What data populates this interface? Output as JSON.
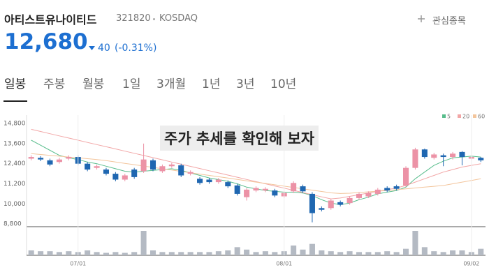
{
  "header": {
    "name": "아티스트유나이티드",
    "code": "321820",
    "market": "KOSDAQ",
    "watch": "관심종목",
    "price": "12,680",
    "change": "40",
    "change_pct": "(-0.31%)"
  },
  "tabs": [
    "일봉",
    "주봉",
    "월봉",
    "1일",
    "3개월",
    "1년",
    "3년",
    "10년"
  ],
  "overlay": "주가 추세를 확인해 보자",
  "chart_data": {
    "type": "candlestick",
    "categories": [
      null,
      null,
      null,
      null,
      null,
      "07/01",
      null,
      null,
      null,
      null,
      null,
      null,
      null,
      null,
      null,
      null,
      null,
      null,
      null,
      null,
      null,
      null,
      null,
      null,
      null,
      null,
      null,
      "08/01",
      null,
      null,
      null,
      null,
      null,
      null,
      null,
      null,
      null,
      null,
      null,
      null,
      null,
      null,
      null,
      null,
      null,
      null,
      null,
      "09/02",
      null
    ],
    "open": [
      12700,
      12750,
      12600,
      12500,
      12700,
      12800,
      12400,
      12150,
      12050,
      11800,
      11450,
      12050,
      11950,
      12600,
      11950,
      12250,
      12300,
      11800,
      11500,
      11450,
      11300,
      11300,
      11100,
      10400,
      10800,
      10800,
      10800,
      10450,
      10750,
      11050,
      10600,
      9750,
      9750,
      10100,
      10050,
      10350,
      10450,
      10600,
      10950,
      11050,
      11100,
      12150,
      13250,
      12750,
      12900,
      12800,
      13100,
      12700,
      12750
    ],
    "high": [
      12900,
      12850,
      12700,
      12750,
      12900,
      12900,
      12500,
      12350,
      12150,
      11900,
      11800,
      12150,
      13600,
      12700,
      12350,
      12450,
      12400,
      12000,
      11600,
      11550,
      11550,
      11400,
      11200,
      10950,
      11050,
      11000,
      10900,
      10750,
      11350,
      11150,
      10700,
      9850,
      10300,
      10200,
      10450,
      10700,
      10750,
      10950,
      11050,
      11150,
      12250,
      13350,
      13300,
      13050,
      13000,
      13100,
      13150,
      12900,
      12800
    ],
    "low": [
      12600,
      12550,
      12250,
      12400,
      12600,
      12300,
      11950,
      12050,
      11700,
      11350,
      11350,
      11500,
      11850,
      11950,
      11850,
      12150,
      11600,
      11700,
      11150,
      11200,
      11200,
      10950,
      10500,
      10200,
      10700,
      10700,
      10400,
      10350,
      10650,
      10650,
      8900,
      9550,
      9650,
      9850,
      9950,
      10250,
      10350,
      10500,
      10700,
      10800,
      11000,
      12050,
      12700,
      12650,
      12250,
      12650,
      12300,
      12600,
      12500
    ],
    "close": [
      12800,
      12650,
      12350,
      12650,
      12800,
      12400,
      12050,
      12250,
      11800,
      11450,
      11700,
      11600,
      12650,
      12050,
      12250,
      12350,
      11700,
      11900,
      11250,
      11300,
      11450,
      11050,
      10600,
      10850,
      10950,
      10900,
      10500,
      10650,
      11250,
      10750,
      9450,
      9650,
      10200,
      9950,
      10350,
      10600,
      10650,
      10850,
      10800,
      10900,
      12150,
      13250,
      12800,
      12950,
      12800,
      13000,
      12800,
      12800,
      12600
    ],
    "volume": [
      6,
      5,
      5,
      4,
      5,
      4,
      6,
      4,
      3,
      4,
      3,
      4,
      30,
      6,
      4,
      4,
      4,
      4,
      4,
      4,
      5,
      6,
      10,
      7,
      4,
      5,
      4,
      5,
      12,
      7,
      14,
      6,
      5,
      4,
      5,
      4,
      4,
      4,
      5,
      4,
      8,
      30,
      10,
      5,
      4,
      6,
      6,
      4,
      8
    ],
    "up_color": "#ec92a6",
    "down_color": "#1f67b1",
    "volume_color": "#b4bac3",
    "series": [
      {
        "name": "5",
        "color": "#58bd8c",
        "values": [
          13800,
          13500,
          13200,
          12900,
          12750,
          12650,
          12500,
          12400,
          12250,
          12100,
          11950,
          11900,
          11950,
          12000,
          12050,
          12100,
          12000,
          11850,
          11700,
          11550,
          11450,
          11350,
          11200,
          11000,
          10900,
          10800,
          10750,
          10700,
          10700,
          10650,
          10500,
          10250,
          10050,
          9950,
          10050,
          10250,
          10400,
          10600,
          10700,
          10800,
          11000,
          11500,
          11900,
          12300,
          12550,
          12750,
          12800,
          12850,
          12800
        ]
      },
      {
        "name": "20",
        "color": "#f2a6a6",
        "values": [
          14450,
          14320,
          14190,
          14060,
          13930,
          13800,
          13670,
          13540,
          13410,
          13280,
          13150,
          13020,
          12890,
          12760,
          12630,
          12500,
          12370,
          12240,
          12110,
          11980,
          11850,
          11720,
          11590,
          11460,
          11330,
          11200,
          11070,
          10940,
          10810,
          10680,
          10550,
          10420,
          10300,
          10350,
          10450,
          10550,
          10650,
          10750,
          10850,
          10950,
          11100,
          11300,
          11500,
          11700,
          11900,
          12050,
          12200,
          12300,
          12400
        ]
      },
      {
        "name": "60",
        "color": "#f3c59c",
        "values": [
          13000,
          12950,
          12900,
          12850,
          12800,
          12750,
          12700,
          12650,
          12580,
          12500,
          12420,
          12340,
          12260,
          12180,
          12100,
          12020,
          11940,
          11860,
          11780,
          11700,
          11620,
          11540,
          11460,
          11380,
          11300,
          11220,
          11140,
          11060,
          10980,
          10900,
          10820,
          10740,
          10660,
          10620,
          10640,
          10680,
          10720,
          10760,
          10800,
          10850,
          10900,
          10950,
          11000,
          11050,
          11100,
          11200,
          11300,
          11400,
          11500
        ]
      }
    ],
    "ylim": [
      8640,
      15300
    ],
    "yticks": [
      {
        "value": 14800,
        "label": "14,800"
      },
      {
        "value": 13600,
        "label": "13,600"
      },
      {
        "value": 12400,
        "label": "12,400"
      },
      {
        "value": 11200,
        "label": "11,200"
      },
      {
        "value": 10000,
        "label": "10,000"
      },
      {
        "value": 8800,
        "label": "8,800"
      }
    ],
    "grid": false
  }
}
